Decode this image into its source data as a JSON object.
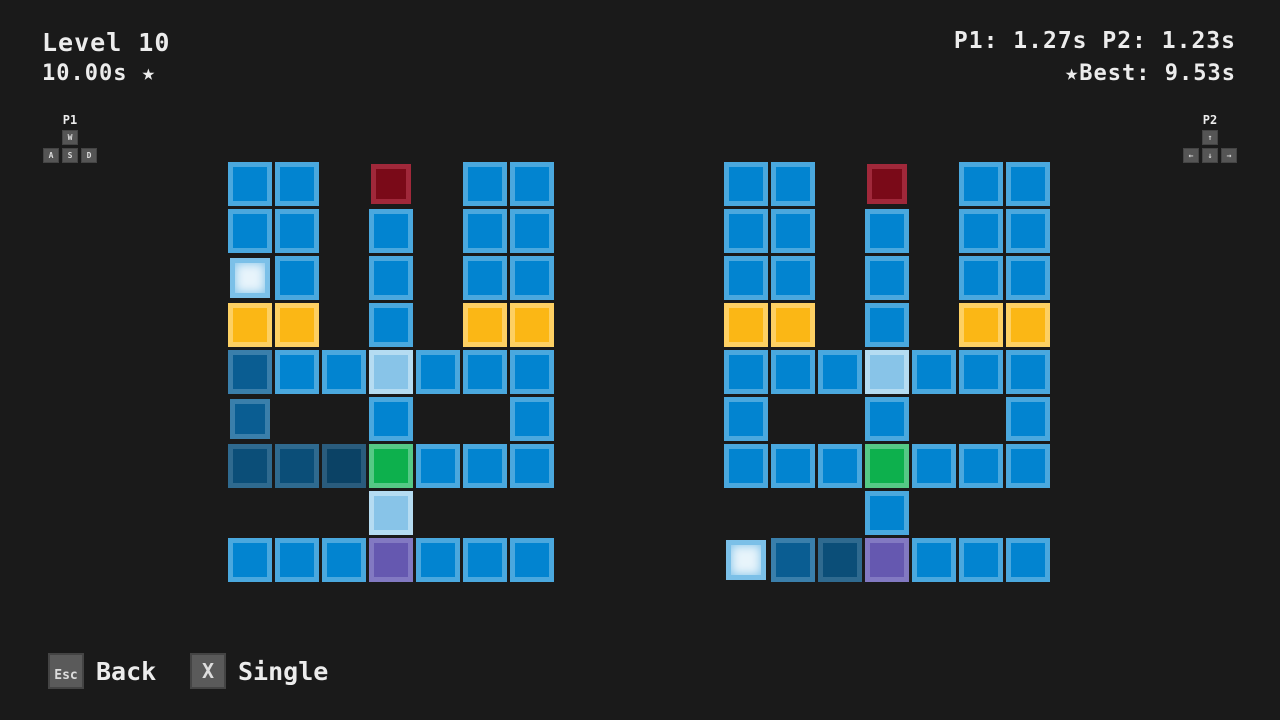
{
  "hud": {
    "level": "Level 10",
    "target_time": "10.00s",
    "star_icon": "★",
    "times": "P1: 1.27s P2: 1.23s",
    "best": "Best: 9.53s"
  },
  "p1_controls": {
    "label": "P1",
    "keys": [
      "W",
      "A",
      "S",
      "D"
    ]
  },
  "p2_controls": {
    "label": "P2",
    "keys": [
      "↑",
      "←",
      "↓",
      "→"
    ]
  },
  "legend": {
    "B": "blue tile",
    "W": "player",
    "D": "visited tile",
    "Y": "yellow tile",
    "R": "red goal",
    "L": "light tile",
    "G": "green tile",
    "P": "purple tile"
  },
  "colors": {
    "B": [
      "#0284d0",
      "#4aa8de"
    ],
    "W": [
      "#e8f4fb",
      "#7bc0e8"
    ],
    "D": [
      "#0a5d92",
      "#3a7fab"
    ],
    "E": [
      "#0b4e78",
      "#2f6a8f"
    ],
    "F": [
      "#0b4265",
      "#2a5c7d"
    ],
    "Y": [
      "#fbb715",
      "#fdd063"
    ],
    "R": [
      "#7a0a18",
      "#a0283a"
    ],
    "L": [
      "#88c4e8",
      "#b5dcf2"
    ],
    "G": [
      "#0db04d",
      "#55c986"
    ],
    "P": [
      "#6558b0",
      "#8279c2"
    ]
  },
  "boards": [
    {
      "name": "p1",
      "rows": [
        "BB.R.BB",
        "BB.B.BB",
        "WB.B.BB",
        "YY.B.YY",
        "DBBLBBB",
        "D..B..B",
        "EEFGBBB",
        "...L...",
        "BBBPBBB"
      ]
    },
    {
      "name": "p2",
      "rows": [
        "BB.R.BB",
        "BB.B.BB",
        "BB.B.BB",
        "YY.B.YY",
        "BBBLBBB",
        "B..B..B",
        "BBBGBBB",
        "...B...",
        "WDEPBBB"
      ]
    }
  ],
  "buttons": {
    "back_key": "Esc",
    "back": "Back",
    "single_key": "X",
    "single": "Single"
  }
}
